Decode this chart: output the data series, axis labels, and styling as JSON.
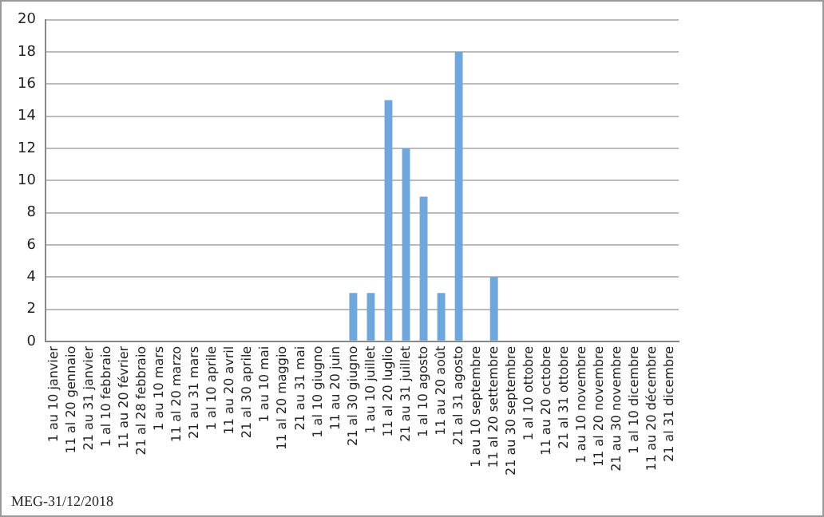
{
  "chart_data": {
    "type": "bar",
    "categories": [
      "1 au 10 janvier",
      "11 al 20 gennaio",
      "21 au 31 janvier",
      "1 al 10 febbraio",
      "11 au 20 février",
      "21 al 28 febbraio",
      "1 au 10 mars",
      "11 al 20 marzo",
      "21 au 31 mars",
      "1 al 10 aprile",
      "11 au 20 avril",
      "21 al 30 aprile",
      "1 au 10 mai",
      "11 al 20 maggio",
      "21 au 31 mai",
      "1 al 10 giugno",
      "11 au 20 juin",
      "21 al 30 giugno",
      "1 au 10 juillet",
      "11 al 20 luglio",
      "21 au 31 juillet",
      "1 al 10 agosto",
      "11 au 20 août",
      "21 al 31 agosto",
      "1 au 10 septembre",
      "11 al 20 settembre",
      "21 au 30 septembre",
      "1 al 10 ottobre",
      "11 au 20 octobre",
      "21 al 31 ottobre",
      "1 au 10 novembre",
      "11 al 20 novembre",
      "21 au 30 novembre",
      "1 al 10 dicembre",
      "11 au 20 décembre",
      "21 al 31 dicembre"
    ],
    "values": [
      0,
      0,
      0,
      0,
      0,
      0,
      0,
      0,
      0,
      0,
      0,
      0,
      0,
      0,
      0,
      0,
      0,
      3,
      3,
      15,
      12,
      9,
      3,
      18,
      0,
      4,
      0,
      0,
      0,
      0,
      0,
      0,
      0,
      0,
      0,
      0
    ],
    "color": "#6fa6dc",
    "ylim": [
      0,
      20
    ],
    "yticks": [
      0,
      2,
      4,
      6,
      8,
      10,
      12,
      14,
      16,
      18,
      20
    ],
    "grid": "y",
    "annotations": [
      "MEG-31/12/2018"
    ]
  }
}
